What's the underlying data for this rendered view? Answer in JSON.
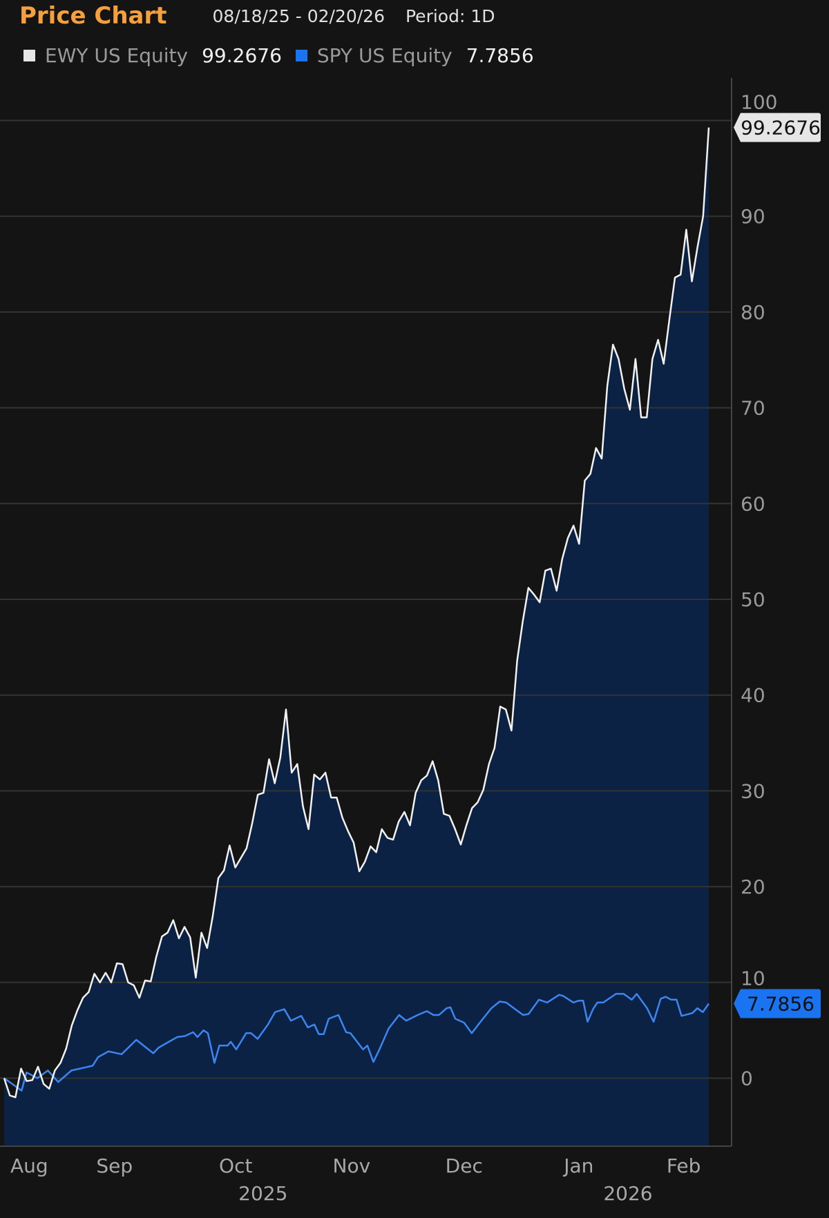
{
  "header": {
    "title": "Price Chart",
    "date_range": "08/18/25 - 02/20/26",
    "period": "Period: 1D"
  },
  "legend": [
    {
      "name": "EWY US Equity",
      "value": "99.2676",
      "color": "#e6e6e6"
    },
    {
      "name": "SPY US Equity",
      "value": "7.7856",
      "color": "#1a73f0"
    }
  ],
  "colors": {
    "title": "#f5a03c",
    "fill": "#0b2244",
    "ewy_line": "#f2f2f2",
    "spy_line": "#3d86f2",
    "spy_tag": "#1a73f0",
    "ewy_tag": "#e6e6e6",
    "grid": "#333333"
  },
  "chart_data": {
    "type": "line",
    "title": "Price Chart",
    "xlabel": "",
    "ylabel": "",
    "ylim": [
      -7.5,
      100
    ],
    "xlim": [
      0,
      129
    ],
    "x_unit": "trading days since 08/18/25",
    "yticks": [
      0,
      10,
      20,
      30,
      40,
      50,
      60,
      70,
      80,
      90,
      100
    ],
    "grid": true,
    "xticks": [
      {
        "label": "Aug",
        "x": 4.6
      },
      {
        "label": "Sep",
        "x": 20.2
      },
      {
        "label": "Oct",
        "x": 42.4
      },
      {
        "label": "Nov",
        "x": 63.6
      },
      {
        "label": "Dec",
        "x": 84.2
      },
      {
        "label": "Jan",
        "x": 105.2
      },
      {
        "label": "Feb",
        "x": 124.4
      }
    ],
    "year_labels": [
      {
        "label": "2025",
        "x": 47.4
      },
      {
        "label": "2026",
        "x": 114.2
      }
    ],
    "series": [
      {
        "name": "EWY US Equity",
        "last_value": 99.2676,
        "last_label": "99.2676",
        "filled": true,
        "values": [
          0,
          -1.8,
          -2,
          1,
          -0.3,
          -0.2,
          1.2,
          -0.6,
          -1.1,
          0.8,
          1.6,
          3.1,
          5.5,
          7.1,
          8.4,
          9,
          10.9,
          10,
          11,
          10,
          12,
          11.9,
          10,
          9.7,
          8.4,
          10.2,
          10.1,
          12.7,
          14.8,
          15.2,
          16.5,
          14.6,
          15.8,
          14.7,
          10.5,
          15.2,
          13.6,
          16.9,
          20.9,
          21.7,
          24.3,
          22,
          23,
          24,
          26.6,
          29.6,
          29.8,
          33.3,
          30.8,
          33.5,
          38.5,
          31.9,
          32.8,
          28.4,
          26,
          31.7,
          31.2,
          31.9,
          29.3,
          29.3,
          27.2,
          25.8,
          24.6,
          21.6,
          22.6,
          24.2,
          23.6,
          26,
          25.1,
          24.9,
          26.8,
          27.8,
          26.4,
          29.8,
          31.1,
          31.6,
          33.1,
          31.1,
          27.6,
          27.4,
          26,
          24.4,
          26.4,
          28.2,
          28.8,
          30.1,
          32.8,
          34.5,
          38.8,
          38.5,
          36.3,
          43.6,
          47.7,
          51.2,
          50.5,
          49.7,
          53,
          53.2,
          50.9,
          54.2,
          56.4,
          57.7,
          55.8,
          62.4,
          63.1,
          65.8,
          64.7,
          72.3,
          76.6,
          75.1,
          72,
          69.8,
          75.1,
          69,
          69,
          75.1,
          77.1,
          74.6,
          79.2,
          83.6,
          83.9,
          88.6,
          83.2,
          86.8,
          90,
          99.2676
        ]
      },
      {
        "name": "SPY US Equity",
        "last_value": 7.7856,
        "last_label": "7.7856",
        "filled": false,
        "points": [
          [
            0,
            0
          ],
          [
            3.2,
            -1.3
          ],
          [
            4.1,
            0.6
          ],
          [
            6.1,
            0
          ],
          [
            8,
            0.8
          ],
          [
            9.9,
            -0.4
          ],
          [
            12.3,
            0.8
          ],
          [
            16.2,
            1.3
          ],
          [
            17.2,
            2.2
          ],
          [
            19.1,
            2.8
          ],
          [
            21.5,
            2.5
          ],
          [
            24.2,
            4
          ],
          [
            27.3,
            2.6
          ],
          [
            28.3,
            3.2
          ],
          [
            31.7,
            4.3
          ],
          [
            33.1,
            4.4
          ],
          [
            34.6,
            4.8
          ],
          [
            35.4,
            4.3
          ],
          [
            36.5,
            5
          ],
          [
            37.3,
            4.7
          ],
          [
            38.5,
            1.6
          ],
          [
            39.4,
            3.4
          ],
          [
            40.9,
            3.4
          ],
          [
            41.5,
            3.8
          ],
          [
            42.5,
            3
          ],
          [
            44.3,
            4.7
          ],
          [
            45.2,
            4.7
          ],
          [
            46.4,
            4.1
          ],
          [
            48.3,
            5.6
          ],
          [
            49.6,
            6.9
          ],
          [
            51.3,
            7.2
          ],
          [
            52.5,
            6
          ],
          [
            54.4,
            6.5
          ],
          [
            55.6,
            5.3
          ],
          [
            56.8,
            5.6
          ],
          [
            57.6,
            4.6
          ],
          [
            58.5,
            4.6
          ],
          [
            59.4,
            6.2
          ],
          [
            61.2,
            6.6
          ],
          [
            62.6,
            4.8
          ],
          [
            63.4,
            4.7
          ],
          [
            65.7,
            3
          ],
          [
            66.5,
            3.4
          ],
          [
            67.6,
            1.7
          ],
          [
            68.7,
            3
          ],
          [
            70.4,
            5.2
          ],
          [
            72.3,
            6.6
          ],
          [
            73.6,
            6
          ],
          [
            75.7,
            6.6
          ],
          [
            77.4,
            7
          ],
          [
            78.6,
            6.6
          ],
          [
            79.6,
            6.6
          ],
          [
            81,
            7.3
          ],
          [
            81.7,
            7.4
          ],
          [
            82.6,
            6.2
          ],
          [
            84.2,
            5.8
          ],
          [
            85.6,
            4.7
          ],
          [
            87.5,
            6.1
          ],
          [
            89.2,
            7.3
          ],
          [
            90.7,
            8
          ],
          [
            91.9,
            7.9
          ],
          [
            93.1,
            7.4
          ],
          [
            95,
            6.6
          ],
          [
            96,
            6.7
          ],
          [
            97.9,
            8.2
          ],
          [
            99.4,
            7.9
          ],
          [
            101.6,
            8.7
          ],
          [
            102.3,
            8.6
          ],
          [
            104.2,
            7.9
          ],
          [
            105.2,
            8.1
          ],
          [
            106,
            8.1
          ],
          [
            106.8,
            5.9
          ],
          [
            107.8,
            7.2
          ],
          [
            108.6,
            7.9
          ],
          [
            109.7,
            7.9
          ],
          [
            112,
            8.8
          ],
          [
            113.4,
            8.8
          ],
          [
            114.9,
            8.2
          ],
          [
            115.8,
            8.8
          ],
          [
            117.7,
            7.3
          ],
          [
            118.9,
            5.9
          ],
          [
            120.2,
            8.3
          ],
          [
            121.1,
            8.5
          ],
          [
            122.1,
            8.2
          ],
          [
            123.1,
            8.2
          ],
          [
            124,
            6.5
          ],
          [
            126,
            6.8
          ],
          [
            126.9,
            7.3
          ],
          [
            127.9,
            6.9
          ],
          [
            129,
            7.7856
          ]
        ]
      }
    ]
  }
}
